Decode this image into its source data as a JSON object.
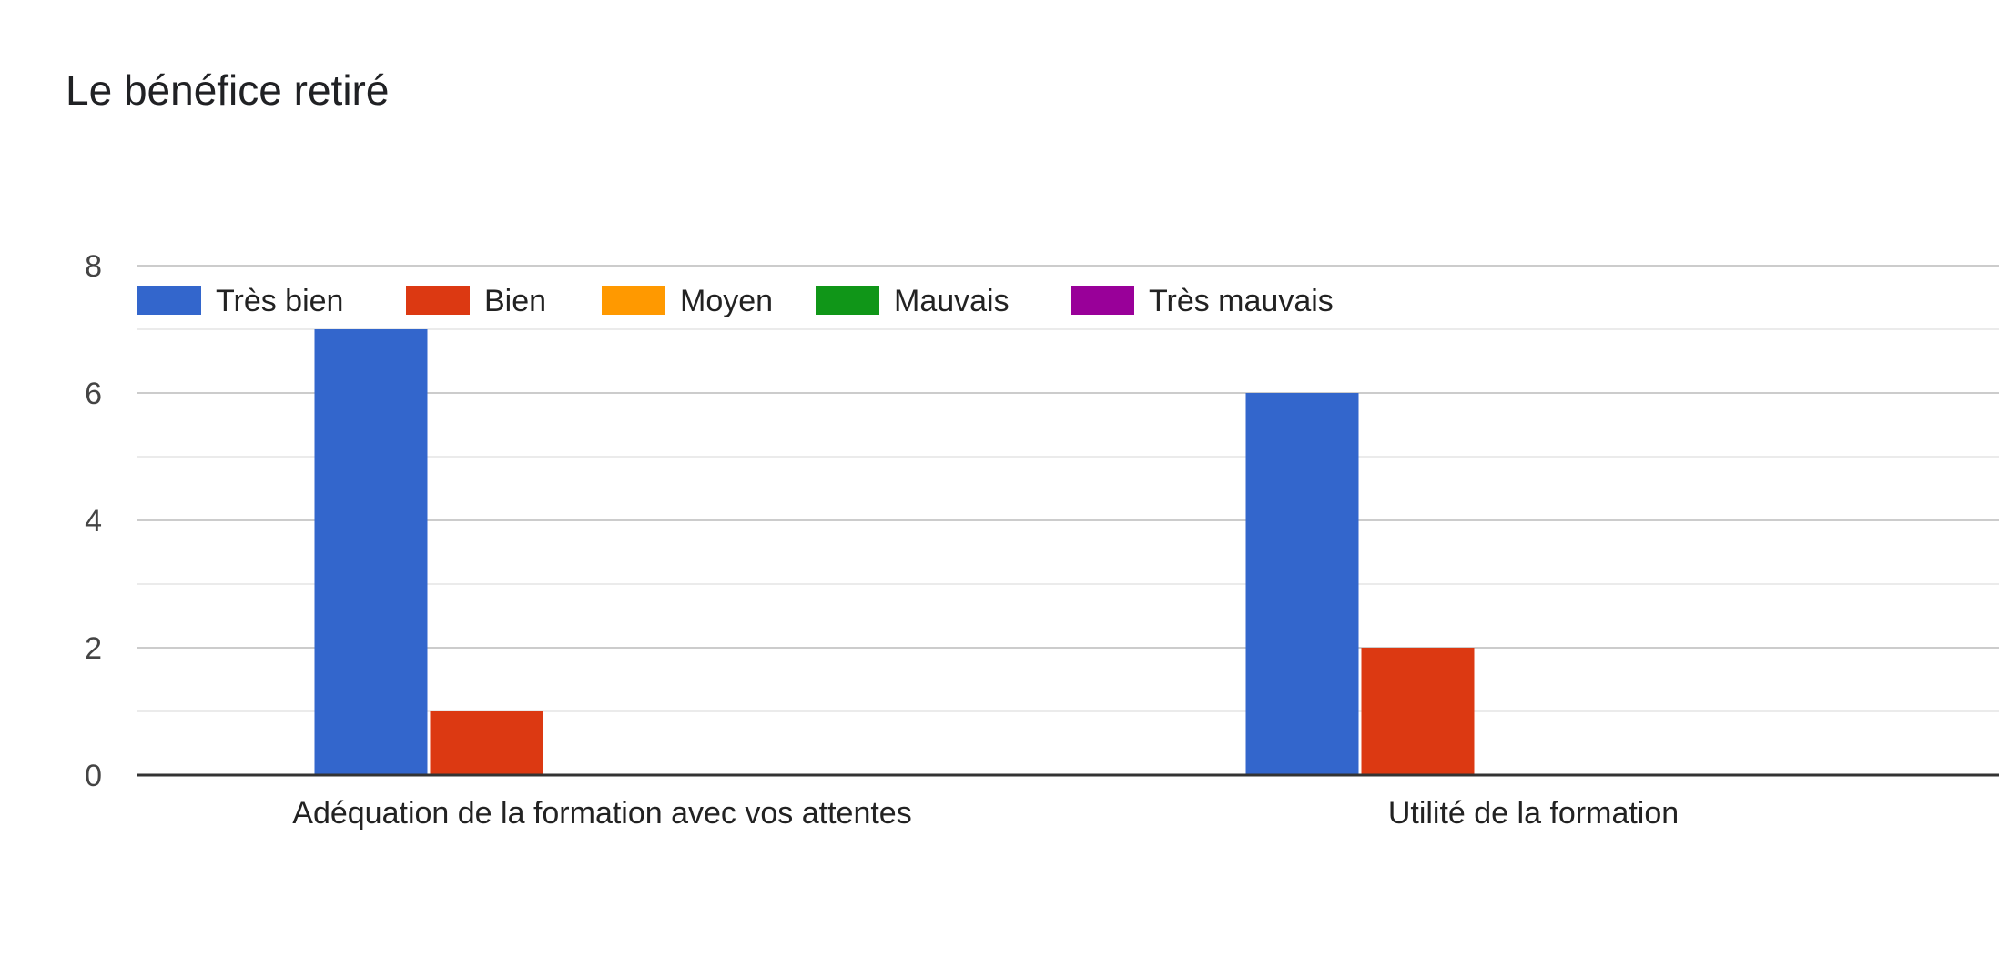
{
  "chart_data": {
    "type": "bar",
    "title": "Le bénéfice retiré",
    "xlabel": "",
    "ylabel": "",
    "categories": [
      "Adéquation de la formation avec vos attentes",
      "Utilité de la formation"
    ],
    "series": [
      {
        "name": "Très bien",
        "color": "#3366cc",
        "values": [
          7,
          6
        ]
      },
      {
        "name": "Bien",
        "color": "#dc3912",
        "values": [
          1,
          2
        ]
      },
      {
        "name": "Moyen",
        "color": "#ff9900",
        "values": [
          0,
          0
        ]
      },
      {
        "name": "Mauvais",
        "color": "#109618",
        "values": [
          0,
          0
        ]
      },
      {
        "name": "Très mauvais",
        "color": "#990099",
        "values": [
          0,
          0
        ]
      }
    ],
    "ylim": [
      0,
      8
    ],
    "yticks": [
      0,
      2,
      4,
      6,
      8
    ],
    "grid": true,
    "legend": "top-left"
  }
}
